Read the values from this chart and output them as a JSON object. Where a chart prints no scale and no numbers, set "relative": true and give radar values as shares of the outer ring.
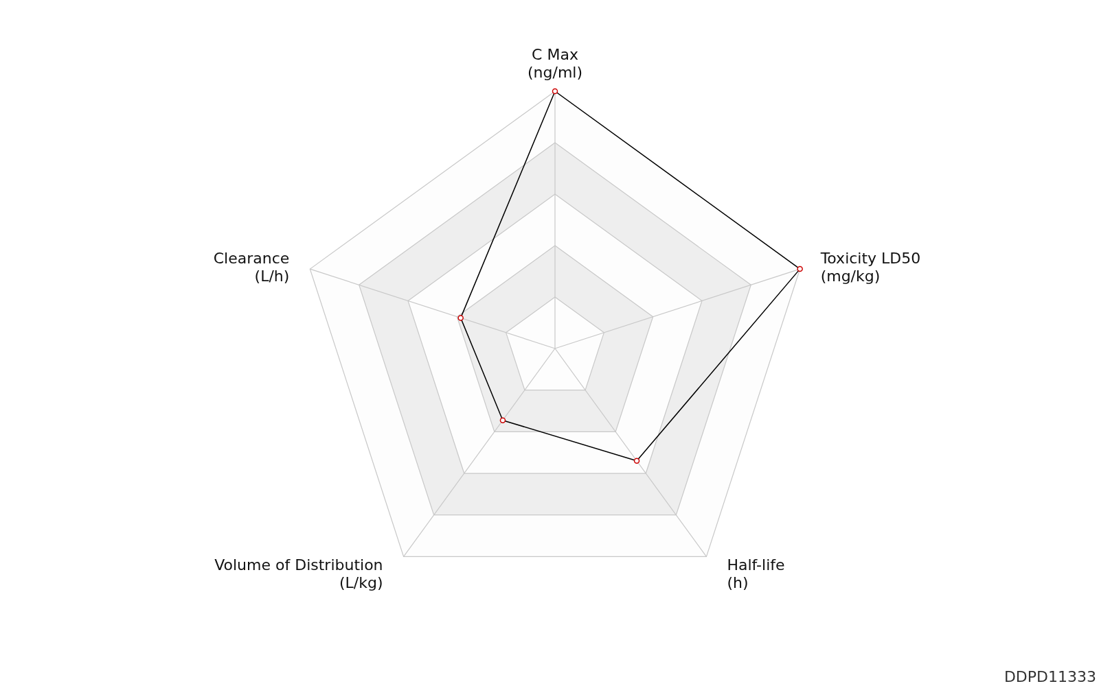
{
  "chart_data": {
    "type": "radar",
    "relative": true,
    "categories": [
      "C Max\n(ng/ml)",
      "Toxicity LD50\n(mg/kg)",
      "Half-life\n(h)",
      "Volume of Distribution\n(L/kg)",
      "Clearance\n(L/h)"
    ],
    "series": [
      {
        "color": "#000000",
        "values": [
          1,
          1,
          0.54,
          0.345,
          0.385
        ]
      }
    ],
    "grid": true,
    "marker": "circle",
    "annotations": [
      "DDPD11333"
    ]
  }
}
